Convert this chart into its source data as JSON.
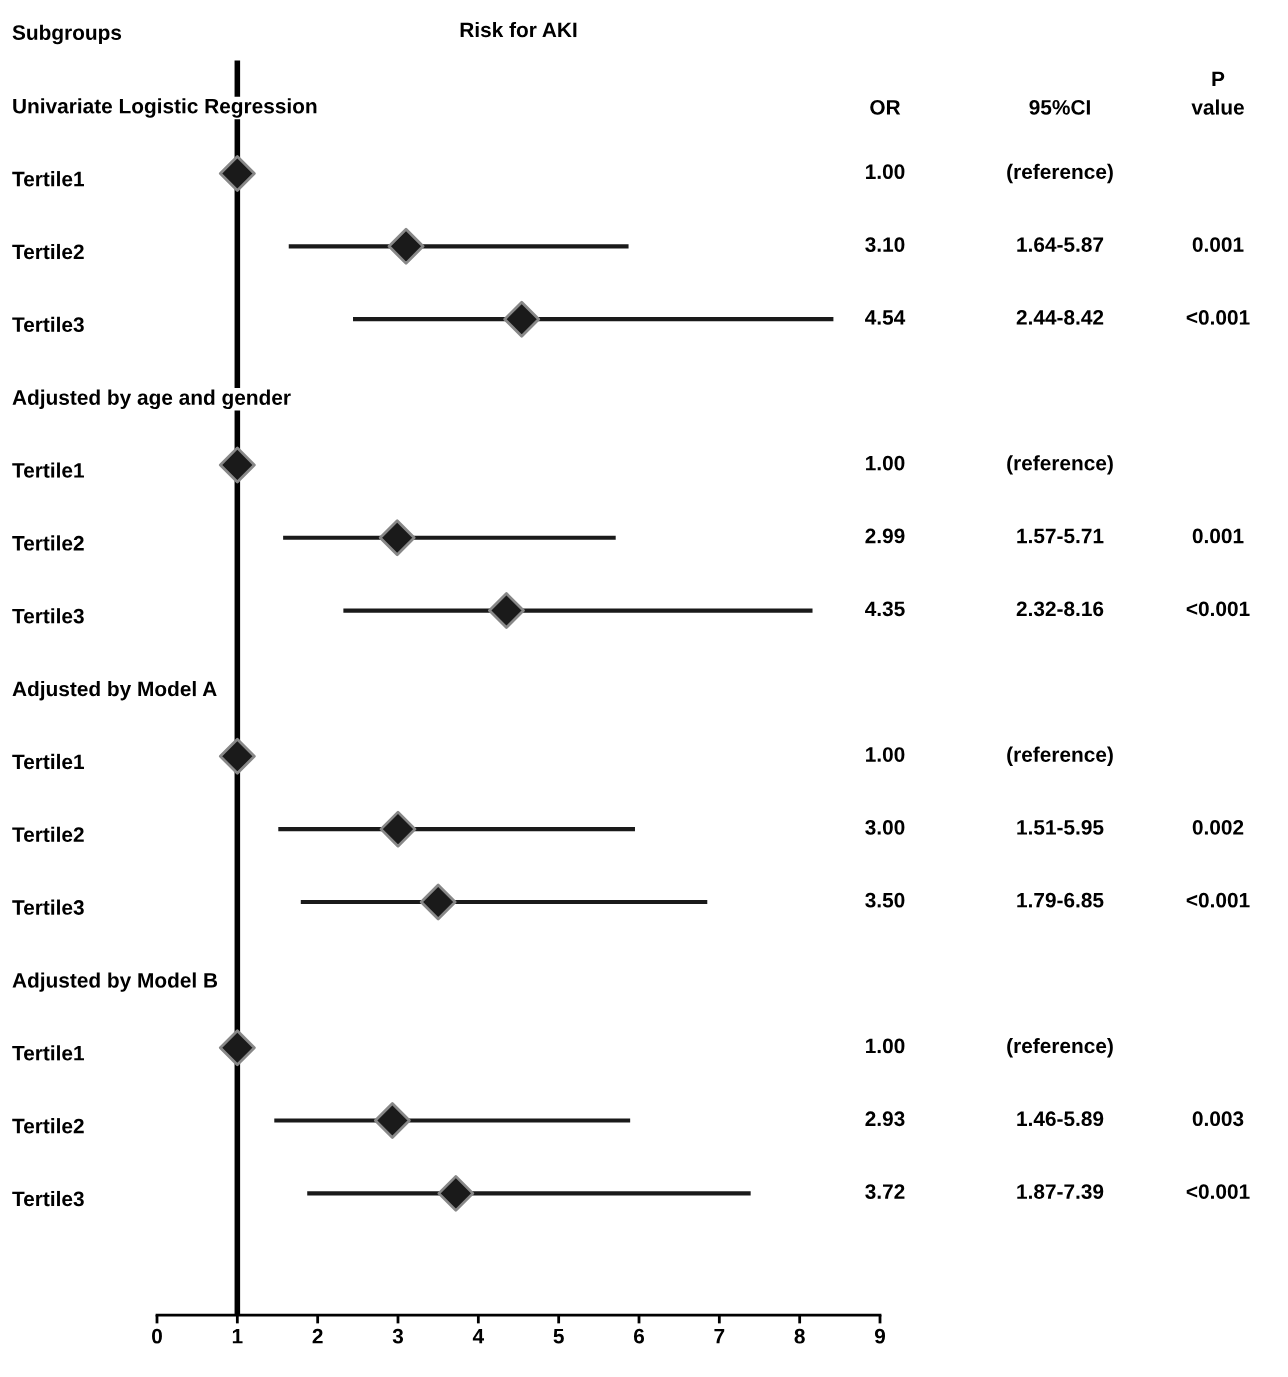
{
  "chart_data": {
    "type": "scatter",
    "orientation": "horizontal",
    "title": "Risk for AKI",
    "ylabel": "Subgroups",
    "categories": [
      "Univariate Logistic Regression",
      "Tertile1",
      "Tertile2",
      "Tertile3",
      "Adjusted by age and gender",
      "Tertile1",
      "Tertile2",
      "Tertile3",
      "Adjusted by Model A",
      "Tertile1",
      "Tertile2",
      "Tertile3",
      "Adjusted by Model B",
      "Tertile1",
      "Tertile2",
      "Tertile3"
    ],
    "series": [
      {
        "color": "#1a1a1a",
        "values": [
          null,
          1.0,
          3.1,
          4.54,
          null,
          1.0,
          2.99,
          4.35,
          null,
          1.0,
          3.0,
          3.5,
          null,
          1.0,
          2.93,
          3.72
        ],
        "errors": [
          null,
          null,
          [
            1.64,
            5.87
          ],
          [
            2.44,
            8.42
          ],
          null,
          null,
          [
            1.57,
            5.71
          ],
          [
            2.32,
            8.16
          ],
          null,
          null,
          [
            1.51,
            5.95
          ],
          [
            1.79,
            6.85
          ],
          null,
          null,
          [
            1.46,
            5.89
          ],
          [
            1.87,
            7.39
          ]
        ]
      }
    ],
    "annotations": [
      "OR",
      "95%CI",
      "P\nvalue",
      "1.00",
      "(reference)",
      "3.10",
      "1.64-5.87",
      "0.001",
      "4.54",
      "2.44-8.42",
      "<0.001",
      "1.00",
      "(reference)",
      "2.99",
      "1.57-5.71",
      "0.001",
      "4.35",
      "2.32-8.16",
      "<0.001",
      "1.00",
      "(reference)",
      "3.00",
      "1.51-5.95",
      "0.002",
      "3.50",
      "1.79-6.85",
      "<0.001",
      "1.00",
      "(reference)",
      "2.93",
      "1.46-5.89",
      "0.003",
      "3.72",
      "1.87-7.39",
      "<0.001"
    ],
    "ref_lines": [
      {
        "axis": "x",
        "value": 1,
        "color": "#000000"
      }
    ],
    "xlim": [
      0,
      9
    ],
    "xticks": [
      0,
      1,
      2,
      3,
      4,
      5,
      6,
      7,
      8,
      9
    ],
    "marker": "diamond",
    "grid": false,
    "legend": false
  }
}
